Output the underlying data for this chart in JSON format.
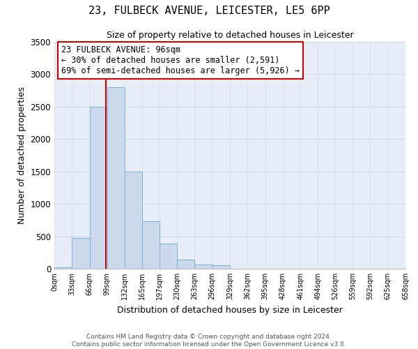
{
  "title": "23, FULBECK AVENUE, LEICESTER, LE5 6PP",
  "subtitle": "Size of property relative to detached houses in Leicester",
  "xlabel": "Distribution of detached houses by size in Leicester",
  "ylabel": "Number of detached properties",
  "bar_edges": [
    0,
    33,
    66,
    99,
    132,
    165,
    197,
    230,
    263,
    296,
    329,
    362,
    395,
    428,
    461,
    494,
    526,
    559,
    592,
    625,
    658
  ],
  "bar_heights": [
    20,
    470,
    2500,
    2800,
    1500,
    730,
    390,
    145,
    70,
    50,
    0,
    0,
    0,
    0,
    0,
    0,
    0,
    0,
    0,
    0
  ],
  "bar_color": "#cdd9ed",
  "bar_edgecolor": "#7aadd6",
  "property_line_x": 96,
  "property_line_color": "#cc0000",
  "ylim": [
    0,
    3500
  ],
  "yticks": [
    0,
    500,
    1000,
    1500,
    2000,
    2500,
    3000,
    3500
  ],
  "xtick_labels": [
    "0sqm",
    "33sqm",
    "66sqm",
    "99sqm",
    "132sqm",
    "165sqm",
    "197sqm",
    "230sqm",
    "263sqm",
    "296sqm",
    "329sqm",
    "362sqm",
    "395sqm",
    "428sqm",
    "461sqm",
    "494sqm",
    "526sqm",
    "559sqm",
    "592sqm",
    "625sqm",
    "658sqm"
  ],
  "annotation_title": "23 FULBECK AVENUE: 96sqm",
  "annotation_line1": "← 30% of detached houses are smaller (2,591)",
  "annotation_line2": "69% of semi-detached houses are larger (5,926) →",
  "annotation_box_color": "#ffffff",
  "annotation_box_edgecolor": "#cc0000",
  "grid_color": "#d0daea",
  "background_color": "#e8eef8",
  "footer_line1": "Contains HM Land Registry data © Crown copyright and database right 2024.",
  "footer_line2": "Contains public sector information licensed under the Open Government Licence v3.0."
}
